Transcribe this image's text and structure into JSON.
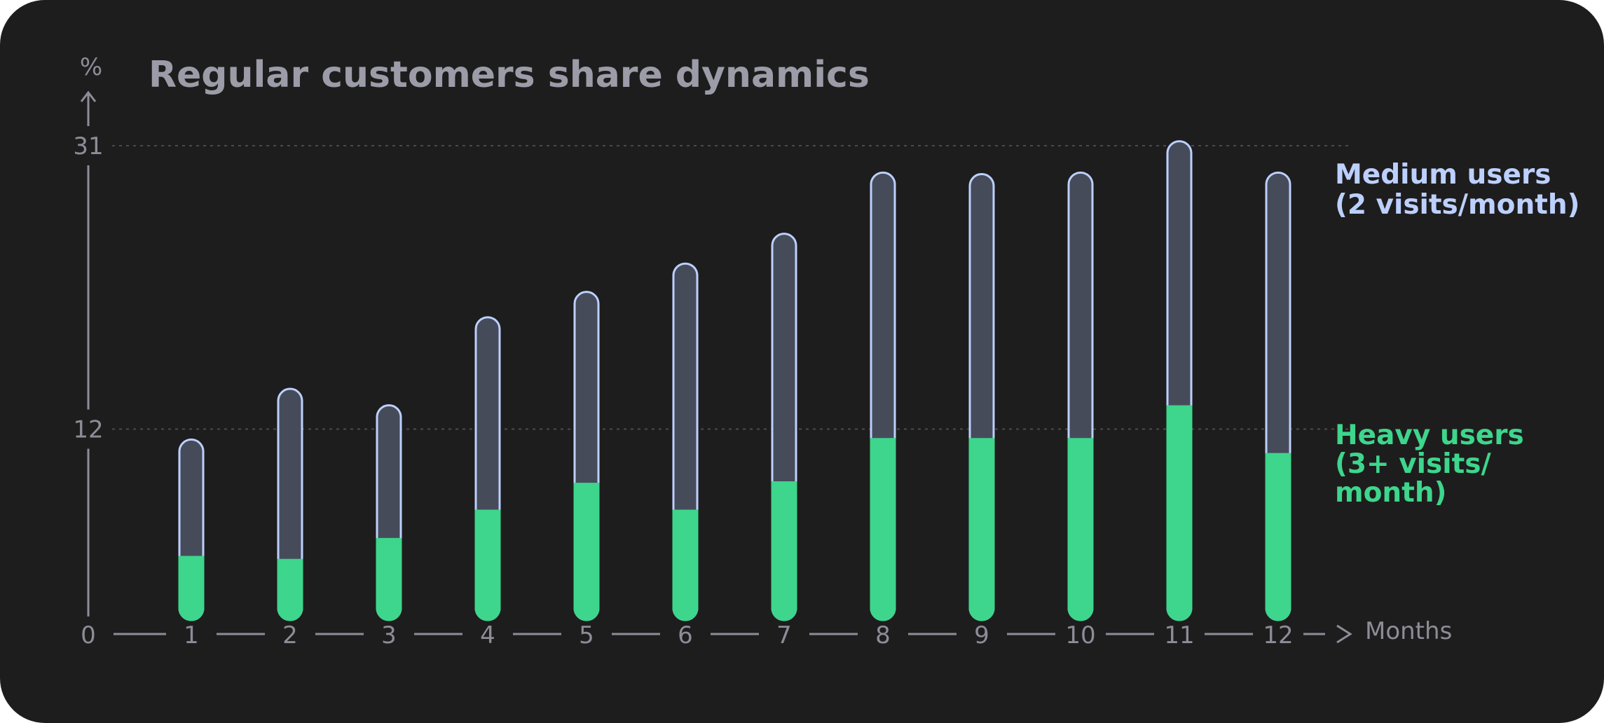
{
  "chart_data": {
    "type": "bar",
    "title": "Regular customers share dynamics",
    "ylabel": "%",
    "xlabel": "Months",
    "x_origin_label": "0",
    "yticks": [
      {
        "label": "12",
        "value": 12
      },
      {
        "label": "31",
        "value": 31
      }
    ],
    "ylim": [
      0,
      31
    ],
    "stacked": true,
    "categories": [
      "1",
      "2",
      "3",
      "4",
      "5",
      "6",
      "7",
      "8",
      "9",
      "10",
      "11",
      "12"
    ],
    "series": [
      {
        "name": "Heavy users (3+ visits/ month)",
        "color": "#3dd68c",
        "values": [
          3.5,
          3.3,
          4.7,
          6.6,
          8.4,
          6.6,
          8.5,
          11.4,
          11.4,
          11.4,
          13.6,
          10.4
        ]
      },
      {
        "name": "Medium users (2 visits/month)",
        "color": "#464b5a",
        "outline": "#bcd0ff",
        "totals": [
          11.3,
          14.7,
          13.6,
          19.5,
          21.2,
          23.1,
          25.1,
          29.2,
          29.1,
          29.2,
          31.3,
          29.2
        ]
      }
    ],
    "legend": {
      "placement": "right",
      "medium_lines": [
        "Medium users",
        "(2 visits/month)"
      ],
      "heavy_lines": [
        "Heavy users",
        "(3+ visits/",
        "month)"
      ]
    },
    "gridlines": [
      12,
      31
    ],
    "grid_style": "dotted"
  }
}
